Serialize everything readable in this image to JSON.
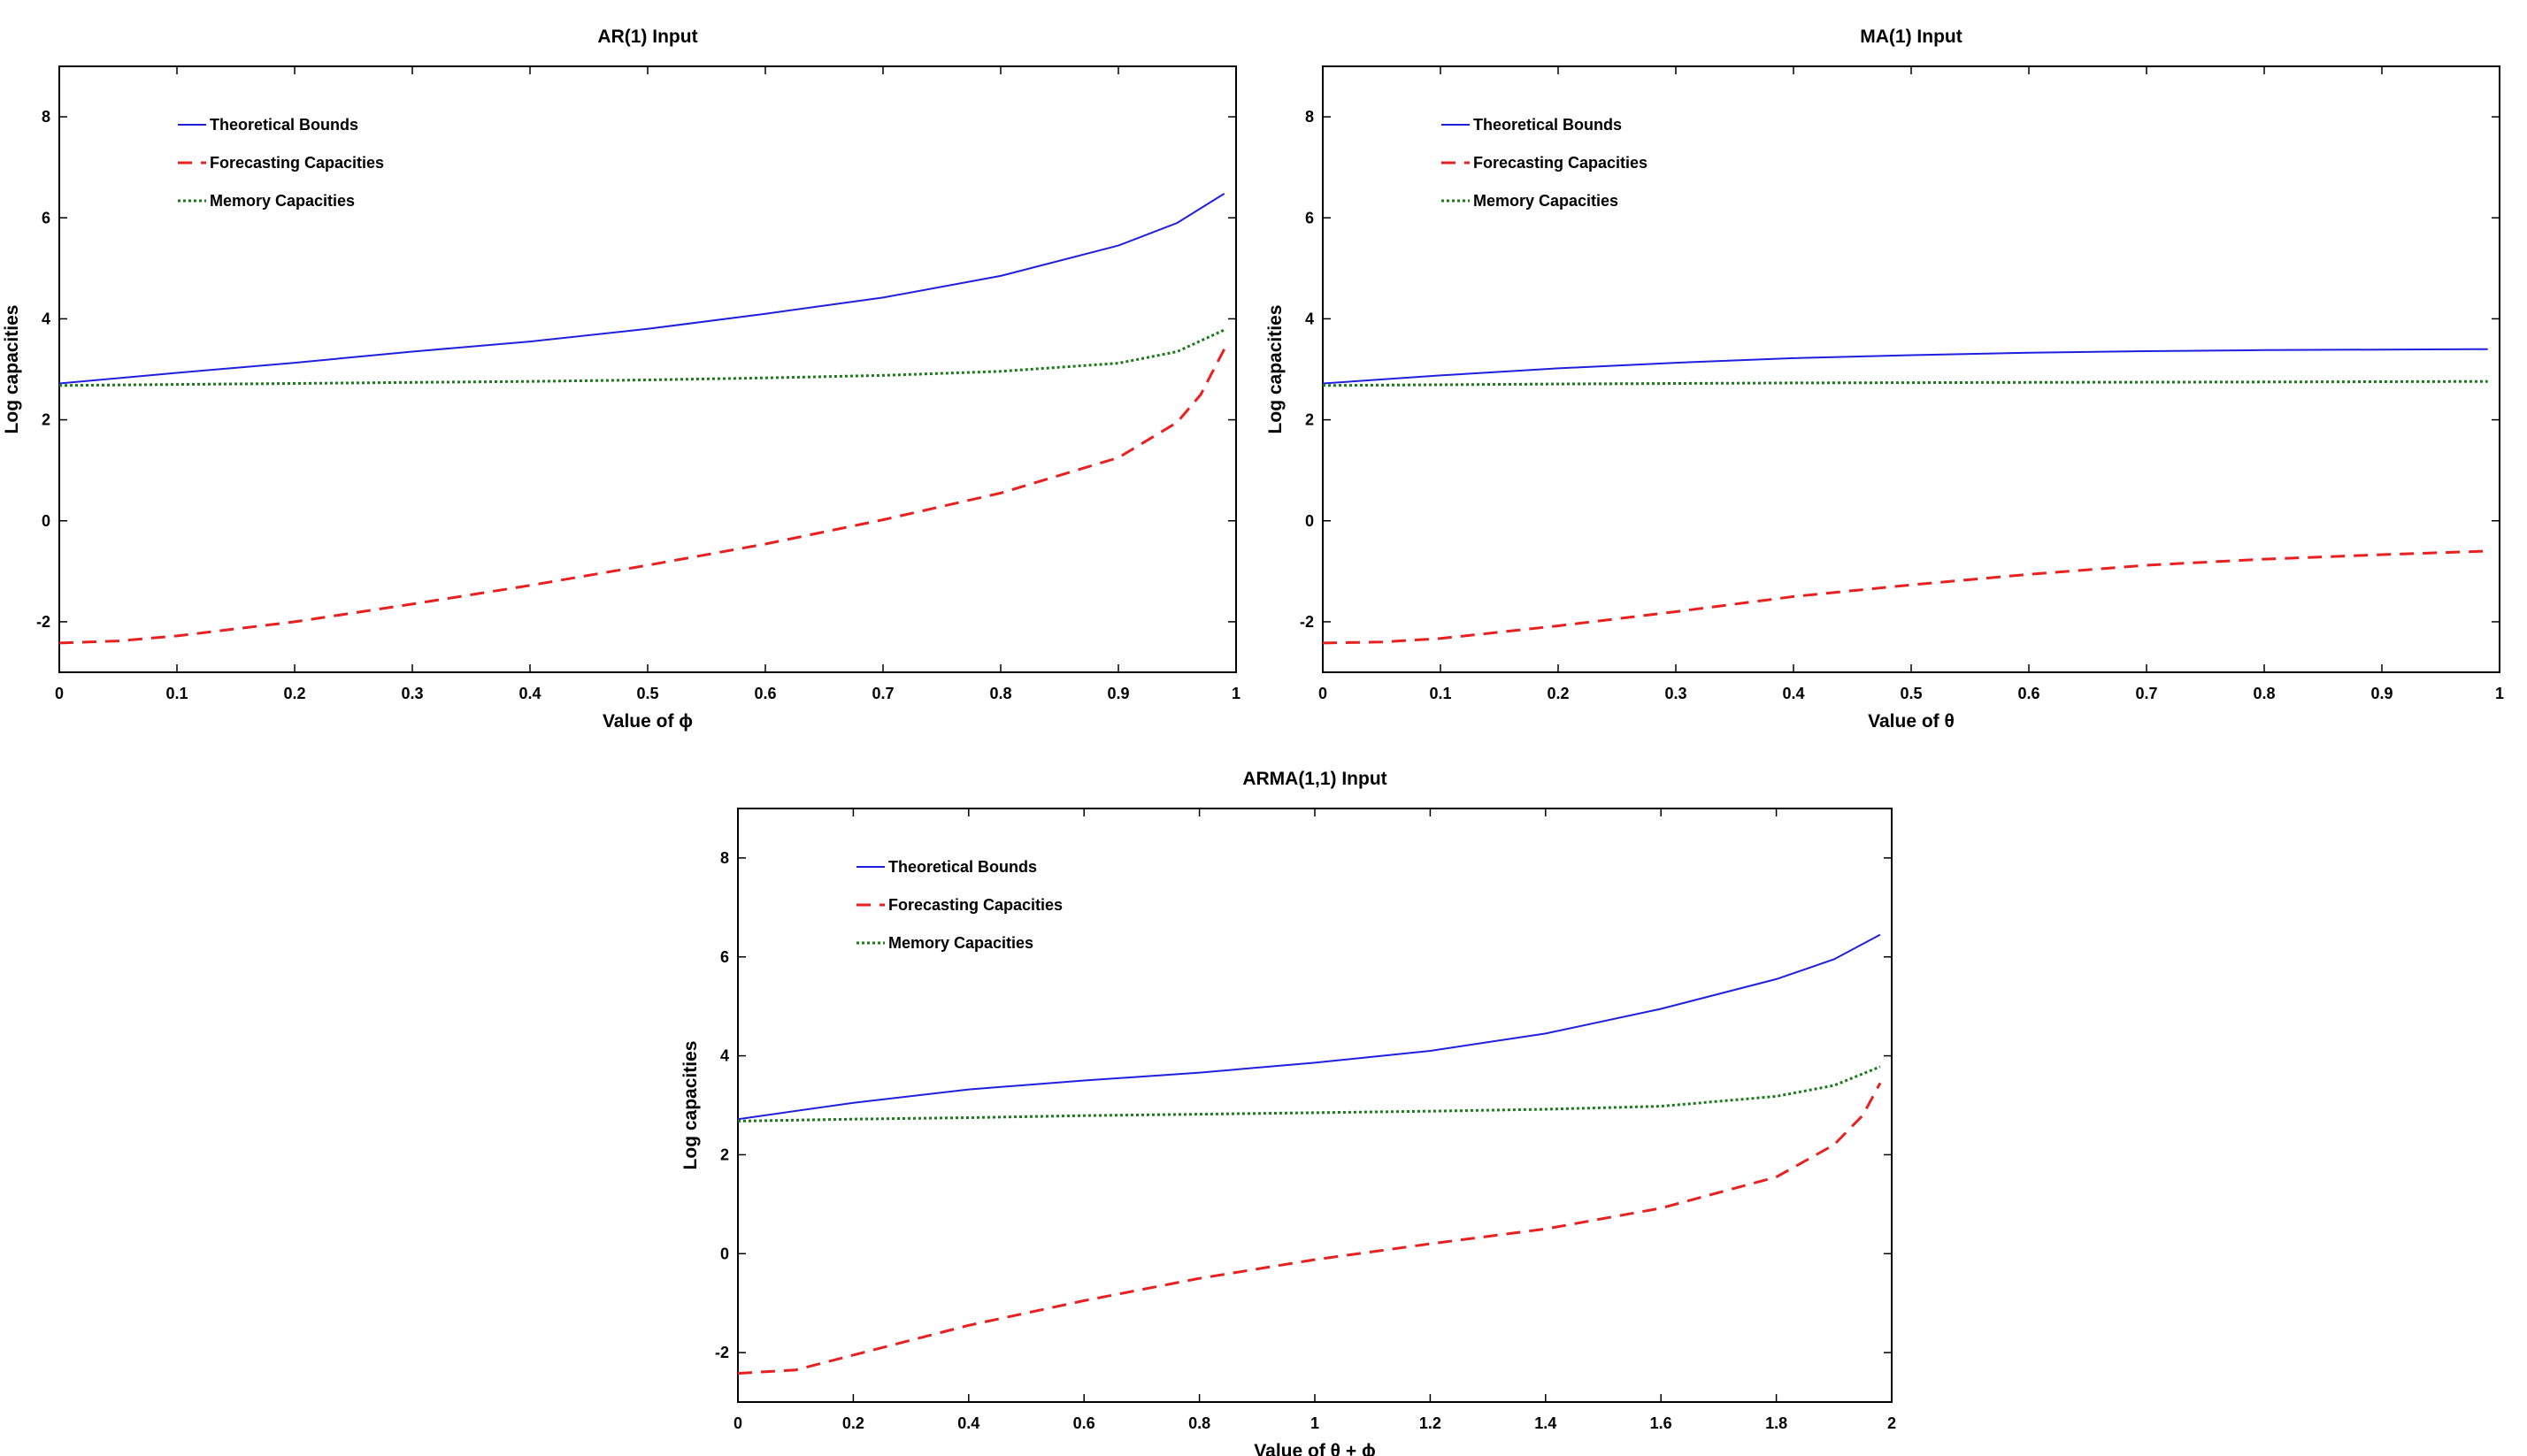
{
  "chart_data": [
    {
      "type": "line",
      "title": "AR(1) Input",
      "xlabel": "Value of ϕ",
      "ylabel": "Log capacities",
      "xlim": [
        0,
        1
      ],
      "ylim": [
        -3,
        9
      ],
      "xticks": [
        "0",
        "0.1",
        "0.2",
        "0.3",
        "0.4",
        "0.5",
        "0.6",
        "0.7",
        "0.8",
        "0.9",
        "1"
      ],
      "yticks": [
        "-2",
        "0",
        "2",
        "4",
        "6",
        "8"
      ],
      "legend_position": "top-left",
      "series": [
        {
          "name": "Theoretical Bounds",
          "color": "#1f1fe0",
          "style": "solid",
          "x": [
            0,
            0.1,
            0.2,
            0.3,
            0.4,
            0.5,
            0.6,
            0.7,
            0.8,
            0.9,
            0.95,
            0.99
          ],
          "y": [
            2.72,
            2.93,
            3.13,
            3.35,
            3.55,
            3.8,
            4.1,
            4.42,
            4.85,
            5.45,
            5.9,
            6.48
          ]
        },
        {
          "name": "Forecasting Capacities",
          "color": "#e82020",
          "style": "dashed",
          "x": [
            0,
            0.05,
            0.1,
            0.2,
            0.3,
            0.4,
            0.5,
            0.6,
            0.7,
            0.8,
            0.9,
            0.95,
            0.97,
            0.99
          ],
          "y": [
            -2.42,
            -2.38,
            -2.28,
            -2.0,
            -1.65,
            -1.28,
            -0.88,
            -0.46,
            0.02,
            0.55,
            1.25,
            1.95,
            2.5,
            3.4
          ]
        },
        {
          "name": "Memory Capacities",
          "color": "#1a7a1a",
          "style": "dotted",
          "x": [
            0,
            0.1,
            0.2,
            0.3,
            0.4,
            0.5,
            0.6,
            0.7,
            0.8,
            0.9,
            0.95,
            0.99
          ],
          "y": [
            2.68,
            2.7,
            2.72,
            2.74,
            2.76,
            2.79,
            2.83,
            2.88,
            2.96,
            3.12,
            3.35,
            3.78
          ]
        }
      ]
    },
    {
      "type": "line",
      "title": "MA(1) Input",
      "xlabel": "Value of θ",
      "ylabel": "Log capacities",
      "xlim": [
        0,
        1
      ],
      "ylim": [
        -3,
        9
      ],
      "xticks": [
        "0",
        "0.1",
        "0.2",
        "0.3",
        "0.4",
        "0.5",
        "0.6",
        "0.7",
        "0.8",
        "0.9",
        "1"
      ],
      "yticks": [
        "-2",
        "0",
        "2",
        "4",
        "6",
        "8"
      ],
      "legend_position": "top-left",
      "series": [
        {
          "name": "Theoretical Bounds",
          "color": "#1f1fe0",
          "style": "solid",
          "x": [
            0,
            0.1,
            0.2,
            0.3,
            0.4,
            0.5,
            0.6,
            0.7,
            0.8,
            0.9,
            0.99
          ],
          "y": [
            2.72,
            2.88,
            3.02,
            3.13,
            3.22,
            3.28,
            3.33,
            3.36,
            3.38,
            3.39,
            3.4
          ]
        },
        {
          "name": "Forecasting Capacities",
          "color": "#e82020",
          "style": "dashed",
          "x": [
            0,
            0.05,
            0.1,
            0.2,
            0.3,
            0.4,
            0.5,
            0.6,
            0.7,
            0.8,
            0.9,
            0.99
          ],
          "y": [
            -2.42,
            -2.4,
            -2.33,
            -2.08,
            -1.8,
            -1.5,
            -1.27,
            -1.06,
            -0.88,
            -0.76,
            -0.67,
            -0.6
          ]
        },
        {
          "name": "Memory Capacities",
          "color": "#1a7a1a",
          "style": "dotted",
          "x": [
            0,
            0.2,
            0.4,
            0.6,
            0.8,
            0.99
          ],
          "y": [
            2.68,
            2.71,
            2.73,
            2.74,
            2.75,
            2.76
          ]
        }
      ]
    },
    {
      "type": "line",
      "title": "ARMA(1,1) Input",
      "xlabel": "Value of θ + ϕ",
      "ylabel": "Log capacities",
      "xlim": [
        0,
        2
      ],
      "ylim": [
        -3,
        9
      ],
      "xticks": [
        "0",
        "0.2",
        "0.4",
        "0.6",
        "0.8",
        "1",
        "1.2",
        "1.4",
        "1.6",
        "1.8",
        "2"
      ],
      "yticks": [
        "-2",
        "0",
        "2",
        "4",
        "6",
        "8"
      ],
      "legend_position": "top-left",
      "series": [
        {
          "name": "Theoretical Bounds",
          "color": "#1f1fe0",
          "style": "solid",
          "x": [
            0,
            0.2,
            0.4,
            0.6,
            0.8,
            1.0,
            1.2,
            1.4,
            1.6,
            1.8,
            1.9,
            1.98
          ],
          "y": [
            2.72,
            3.05,
            3.32,
            3.5,
            3.66,
            3.86,
            4.1,
            4.45,
            4.95,
            5.55,
            5.95,
            6.45
          ]
        },
        {
          "name": "Forecasting Capacities",
          "color": "#e82020",
          "style": "dashed",
          "x": [
            0,
            0.1,
            0.2,
            0.4,
            0.6,
            0.8,
            1.0,
            1.2,
            1.4,
            1.6,
            1.8,
            1.9,
            1.95,
            1.98
          ],
          "y": [
            -2.42,
            -2.35,
            -2.05,
            -1.45,
            -0.95,
            -0.5,
            -0.12,
            0.2,
            0.5,
            0.92,
            1.55,
            2.2,
            2.8,
            3.45
          ]
        },
        {
          "name": "Memory Capacities",
          "color": "#1a7a1a",
          "style": "dotted",
          "x": [
            0,
            0.2,
            0.4,
            0.6,
            0.8,
            1.0,
            1.2,
            1.4,
            1.6,
            1.8,
            1.9,
            1.98
          ],
          "y": [
            2.68,
            2.72,
            2.75,
            2.79,
            2.82,
            2.85,
            2.88,
            2.92,
            2.98,
            3.18,
            3.4,
            3.78
          ]
        }
      ]
    }
  ]
}
